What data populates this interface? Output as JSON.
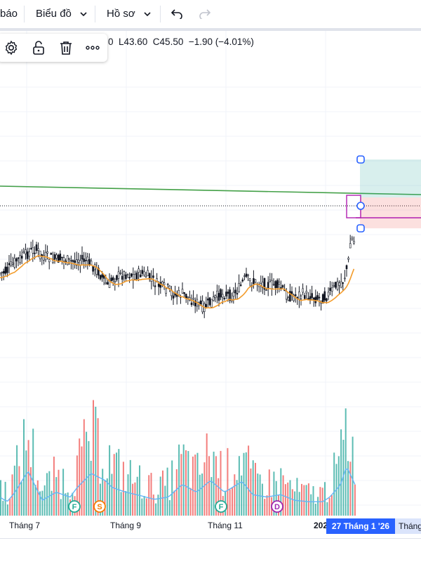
{
  "toolbar": {
    "item0": "báo",
    "item1": "Biểu đồ",
    "item2": "Hồ sơ"
  },
  "ohlc_text": "0  L43.60  C45.50  −1.90 (−4.01%)",
  "xaxis": {
    "labels": [
      "Tháng 7",
      "Tháng 9",
      "Tháng 11",
      "202"
    ],
    "highlight": "27 Tháng 1 '26",
    "next": "Tháng"
  },
  "events": [
    {
      "letter": "F",
      "color": "#22ab94"
    },
    {
      "letter": "S",
      "color": "#f57c00"
    },
    {
      "letter": "F",
      "color": "#22ab94"
    },
    {
      "letter": "D",
      "color": "#9c27b0"
    }
  ],
  "colors": {
    "up": "#26a69a",
    "down": "#ef5350",
    "ma": "#f39c2c",
    "vol_ma": "#64b5f6",
    "trendline": "#43a047",
    "position_box": "#b01fb0",
    "handle": "#2962ff"
  },
  "chart_data": {
    "type": "candlestick",
    "low": 43.6,
    "close": 45.5,
    "change": -1.9,
    "change_percent": -4.01,
    "x_ticks": [
      "Tháng 7",
      "Tháng 9",
      "Tháng 11",
      "202"
    ],
    "crosshair_label": "27 Tháng 1 '26",
    "series_shapes": [
      [
        0,
        36
      ],
      [
        10,
        35
      ],
      [
        20,
        31
      ],
      [
        30,
        29
      ],
      [
        40,
        27
      ],
      [
        50,
        25
      ],
      [
        60,
        28
      ],
      [
        70,
        29
      ],
      [
        80,
        30
      ],
      [
        90,
        29
      ],
      [
        100,
        31
      ],
      [
        110,
        30
      ],
      [
        120,
        30
      ],
      [
        130,
        32
      ],
      [
        140,
        35
      ],
      [
        150,
        40
      ],
      [
        155,
        42
      ],
      [
        160,
        38
      ],
      [
        170,
        37
      ],
      [
        180,
        36
      ],
      [
        190,
        37
      ],
      [
        200,
        36
      ],
      [
        210,
        37
      ],
      [
        220,
        40
      ],
      [
        230,
        42
      ],
      [
        240,
        43
      ],
      [
        250,
        46
      ],
      [
        260,
        45
      ],
      [
        270,
        47
      ],
      [
        280,
        49
      ],
      [
        290,
        51
      ],
      [
        300,
        49
      ],
      [
        310,
        46
      ],
      [
        320,
        45
      ],
      [
        330,
        46
      ],
      [
        340,
        43
      ],
      [
        350,
        38
      ],
      [
        360,
        40
      ],
      [
        370,
        40
      ],
      [
        380,
        41
      ],
      [
        390,
        41
      ],
      [
        400,
        42
      ],
      [
        410,
        46
      ],
      [
        420,
        46
      ],
      [
        430,
        45
      ],
      [
        440,
        46
      ],
      [
        450,
        47
      ],
      [
        460,
        47
      ],
      [
        470,
        45
      ],
      [
        480,
        41
      ],
      [
        490,
        39
      ],
      [
        497,
        30
      ],
      [
        500,
        20
      ],
      [
        505,
        22
      ]
    ],
    "volume_shapes": [
      [
        0,
        0.35
      ],
      [
        10,
        0.25
      ],
      [
        20,
        0.42
      ],
      [
        40,
        0.9
      ],
      [
        60,
        0.28
      ],
      [
        80,
        0.45
      ],
      [
        100,
        0.35
      ],
      [
        110,
        0.55
      ],
      [
        130,
        0.85
      ],
      [
        150,
        0.7
      ],
      [
        160,
        0.55
      ],
      [
        180,
        0.45
      ],
      [
        200,
        0.38
      ],
      [
        220,
        0.3
      ],
      [
        240,
        0.35
      ],
      [
        260,
        0.62
      ],
      [
        280,
        0.45
      ],
      [
        300,
        0.7
      ],
      [
        320,
        0.45
      ],
      [
        345,
        0.68
      ],
      [
        360,
        0.4
      ],
      [
        380,
        0.35
      ],
      [
        400,
        0.4
      ],
      [
        420,
        0.28
      ],
      [
        440,
        0.25
      ],
      [
        460,
        0.25
      ],
      [
        470,
        0.35
      ],
      [
        485,
        0.6
      ],
      [
        494,
        1.0
      ],
      [
        500,
        0.8
      ],
      [
        507,
        0.58
      ]
    ]
  }
}
